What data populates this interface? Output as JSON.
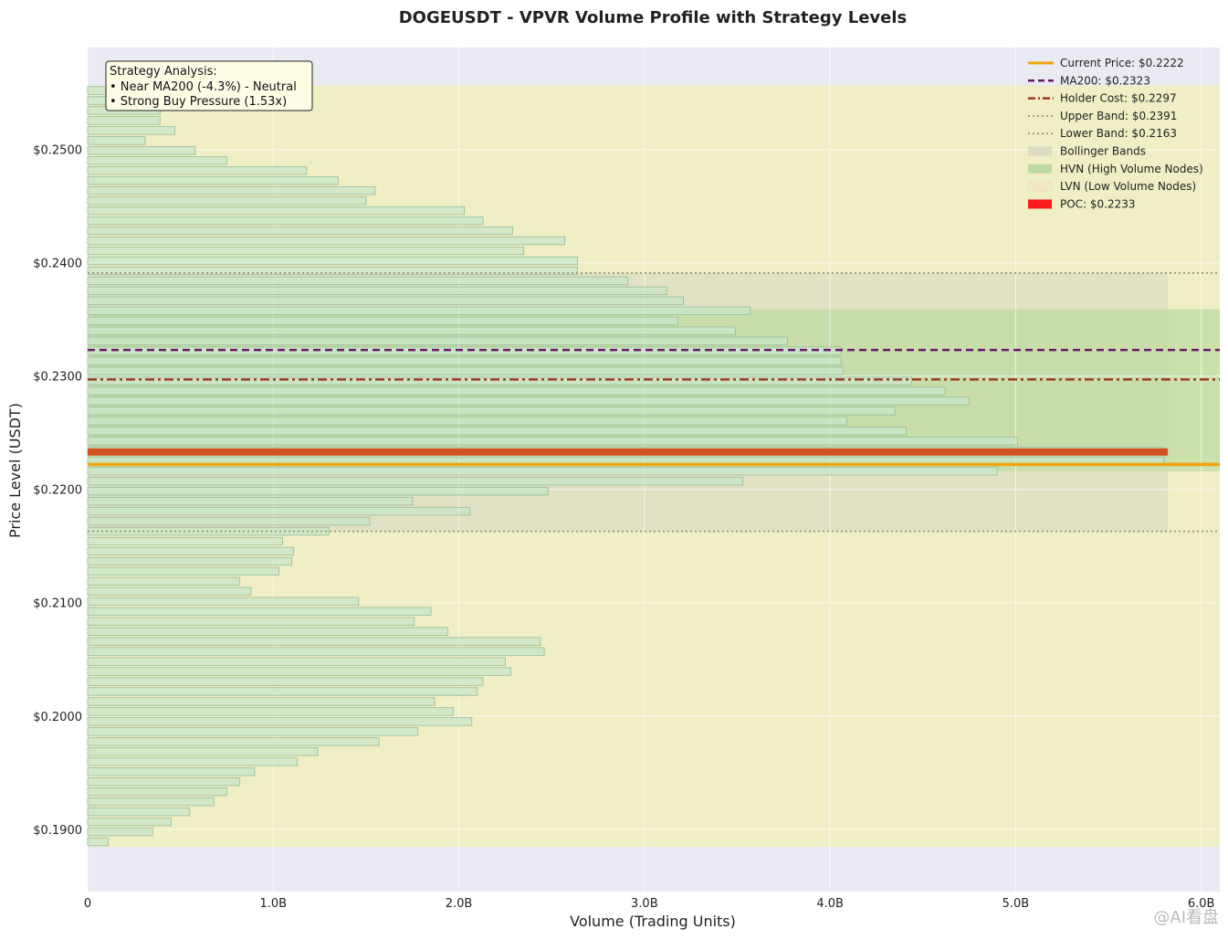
{
  "chart_data": {
    "type": "bar",
    "orientation": "horizontal",
    "title": "DOGEUSDT - VPVR Volume Profile with Strategy Levels",
    "xlabel": "Volume (Trading Units)",
    "ylabel": "Price Level (USDT)",
    "xlim": [
      0,
      6100000000
    ],
    "ylim": [
      0.1845,
      0.259
    ],
    "x_ticks": [
      {
        "value": 0,
        "label": "0"
      },
      {
        "value": 1000000000,
        "label": "1.0B"
      },
      {
        "value": 2000000000,
        "label": "2.0B"
      },
      {
        "value": 3000000000,
        "label": "3.0B"
      },
      {
        "value": 4000000000,
        "label": "4.0B"
      },
      {
        "value": 5000000000,
        "label": "5.0B"
      },
      {
        "value": 6000000000,
        "label": "6.0B"
      }
    ],
    "y_ticks": [
      {
        "value": 0.19,
        "label": "$0.1900"
      },
      {
        "value": 0.2,
        "label": "$0.2000"
      },
      {
        "value": 0.21,
        "label": "$0.2100"
      },
      {
        "value": 0.22,
        "label": "$0.2200"
      },
      {
        "value": 0.23,
        "label": "$0.2300"
      },
      {
        "value": 0.24,
        "label": "$0.2400"
      },
      {
        "value": 0.25,
        "label": "$0.2500"
      }
    ],
    "bin_low": 0.18845,
    "bin_high": 0.25565,
    "volumes_billion": [
      0.11,
      0.35,
      0.45,
      0.55,
      0.68,
      0.75,
      0.82,
      0.9,
      1.13,
      1.24,
      1.57,
      1.78,
      2.07,
      1.97,
      1.87,
      2.1,
      2.13,
      2.28,
      2.25,
      2.46,
      2.44,
      1.94,
      1.76,
      1.85,
      1.46,
      0.88,
      0.82,
      1.03,
      1.1,
      1.11,
      1.05,
      1.3,
      1.52,
      2.06,
      1.75,
      2.48,
      3.53,
      4.9,
      5.8,
      5.8,
      5.01,
      4.41,
      4.09,
      4.35,
      4.75,
      4.62,
      4.44,
      4.07,
      4.06,
      4.06,
      3.77,
      3.49,
      3.18,
      3.57,
      3.21,
      3.12,
      2.91,
      2.64,
      2.64,
      2.35,
      2.57,
      2.29,
      2.13,
      2.03,
      1.5,
      1.55,
      1.35,
      1.18,
      0.75,
      0.58,
      0.31,
      0.47,
      0.39,
      0.39,
      0.42,
      0.39
    ],
    "bollinger": {
      "upper": 0.2391,
      "lower": 0.2163,
      "x_extent": 5820000000
    },
    "hvn_band": [
      0.2216,
      0.2359
    ],
    "lvn_region": [
      0.18845,
      0.25565
    ],
    "lines": {
      "current_price": 0.2222,
      "ma200": 0.2323,
      "holder_cost": 0.2297,
      "poc": 0.2233
    },
    "legend": {
      "placement": "top-right",
      "items": [
        {
          "key": "current",
          "label": "Current Price: $0.2222"
        },
        {
          "key": "ma200",
          "label": "MA200: $0.2323"
        },
        {
          "key": "holder",
          "label": "Holder Cost: $0.2297"
        },
        {
          "key": "upper",
          "label": "Upper Band: $0.2391"
        },
        {
          "key": "lower",
          "label": "Lower Band: $0.2163"
        },
        {
          "key": "boll",
          "label": "Bollinger Bands"
        },
        {
          "key": "hvn",
          "label": "HVN (High Volume Nodes)"
        },
        {
          "key": "lvn",
          "label": "LVN (Low Volume Nodes)"
        },
        {
          "key": "poc",
          "label": "POC: $0.2233"
        }
      ]
    },
    "annotation": {
      "placement": "top-left",
      "lines": [
        "Strategy Analysis:",
        "• Near MA200 (-4.3%) - Neutral",
        "• Strong Buy Pressure (1.53x)"
      ]
    },
    "colors": {
      "plot_bg": "#eaeaf2",
      "lvn": "#efeec4",
      "bollinger": "#dcdcc4",
      "hvn": "#bfdba2",
      "bar_fill": "#c8e6c9",
      "bar_edge": "#99bb99",
      "current": "#f0a30a",
      "ma200": "#6a1a6a",
      "holder": "#a0392a",
      "band_line": "#8a8a6a",
      "poc": "#d2501f"
    },
    "grid": true
  },
  "watermark": "@AI看盘"
}
